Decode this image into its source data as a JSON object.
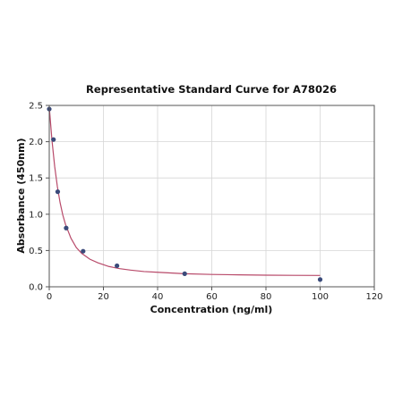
{
  "chart_data": {
    "type": "scatter",
    "title": "Representative Standard Curve for A78026",
    "xlabel": "Concentration (ng/ml)",
    "ylabel": "Absorbance (450nm)",
    "xlim": [
      0,
      120
    ],
    "ylim": [
      0,
      2.5
    ],
    "x_ticks": [
      "0",
      "20",
      "40",
      "60",
      "80",
      "100",
      "120"
    ],
    "y_ticks": [
      "0.0",
      "0.5",
      "1.0",
      "1.5",
      "2.0",
      "2.5"
    ],
    "grid": true,
    "series": [
      {
        "type": "scatter",
        "x": [
          0,
          1.56,
          3.125,
          6.25,
          12.5,
          25,
          50,
          100
        ],
        "y": [
          2.45,
          2.03,
          1.31,
          0.81,
          0.49,
          0.29,
          0.18,
          0.1
        ]
      },
      {
        "type": "line",
        "x": [
          0,
          1,
          2,
          3,
          4,
          5,
          6,
          8,
          10,
          12,
          15,
          18,
          22,
          26,
          30,
          35,
          40,
          50,
          60,
          70,
          80,
          90,
          100
        ],
        "y": [
          2.48,
          2.02,
          1.66,
          1.38,
          1.16,
          0.99,
          0.86,
          0.67,
          0.54,
          0.46,
          0.38,
          0.33,
          0.28,
          0.25,
          0.23,
          0.21,
          0.2,
          0.18,
          0.17,
          0.165,
          0.16,
          0.158,
          0.156
        ]
      }
    ],
    "colors": {
      "point": "#3a4a7a",
      "curve": "#b84a6a",
      "grid": "#d6d6d6",
      "axis": "#555555"
    }
  }
}
